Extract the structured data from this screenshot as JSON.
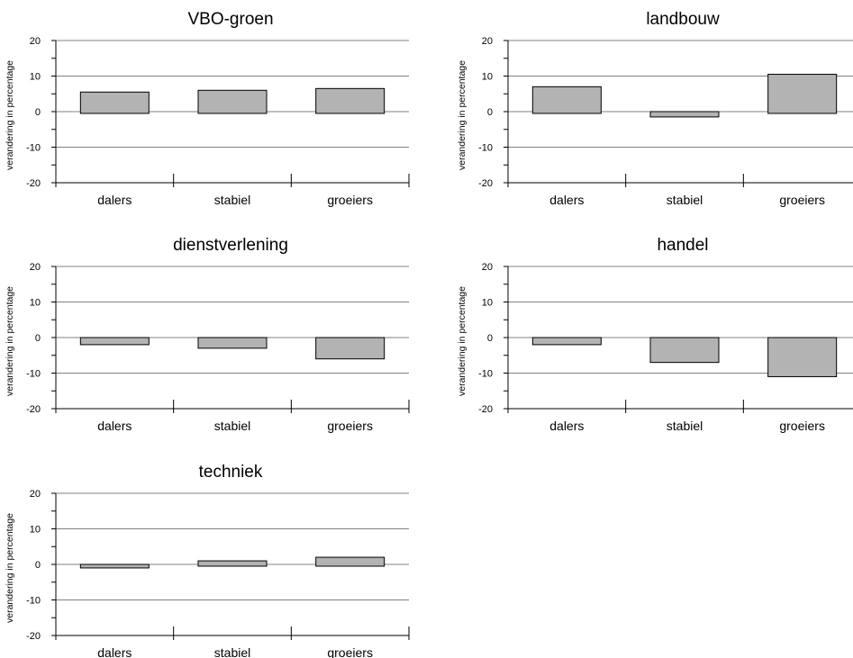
{
  "chart_data": [
    {
      "type": "bar",
      "title": "VBO-groen",
      "ylabel": "verandering in percentage",
      "categories": [
        "dalers",
        "stabiel",
        "groeiers"
      ],
      "values": [
        5.5,
        6,
        6.5
      ],
      "ylim": [
        -20,
        20
      ],
      "yticks": [
        -20,
        -10,
        0,
        10,
        20
      ],
      "grid": true
    },
    {
      "type": "bar",
      "title": "landbouw",
      "ylabel": "verandering in percentage",
      "categories": [
        "dalers",
        "stabiel",
        "groeiers"
      ],
      "values": [
        7,
        -1.5,
        10.5
      ],
      "ylim": [
        -20,
        20
      ],
      "yticks": [
        -20,
        -10,
        0,
        10,
        20
      ],
      "grid": true
    },
    {
      "type": "bar",
      "title": "dienstverlening",
      "ylabel": "verandering in percentage",
      "categories": [
        "dalers",
        "stabiel",
        "groeiers"
      ],
      "values": [
        -2,
        -3,
        -6
      ],
      "ylim": [
        -20,
        20
      ],
      "yticks": [
        -20,
        -10,
        0,
        10,
        20
      ],
      "grid": true
    },
    {
      "type": "bar",
      "title": "handel",
      "ylabel": "verandering in percentage",
      "categories": [
        "dalers",
        "stabiel",
        "groeiers"
      ],
      "values": [
        -2,
        -7,
        -11
      ],
      "ylim": [
        -20,
        20
      ],
      "yticks": [
        -20,
        -10,
        0,
        10,
        20
      ],
      "grid": true
    },
    {
      "type": "bar",
      "title": "techniek",
      "ylabel": "verandering in percentage",
      "categories": [
        "dalers",
        "stabiel",
        "groeiers"
      ],
      "values": [
        -1,
        1,
        2
      ],
      "ylim": [
        -20,
        20
      ],
      "yticks": [
        -20,
        -10,
        0,
        10,
        20
      ],
      "grid": true
    }
  ]
}
